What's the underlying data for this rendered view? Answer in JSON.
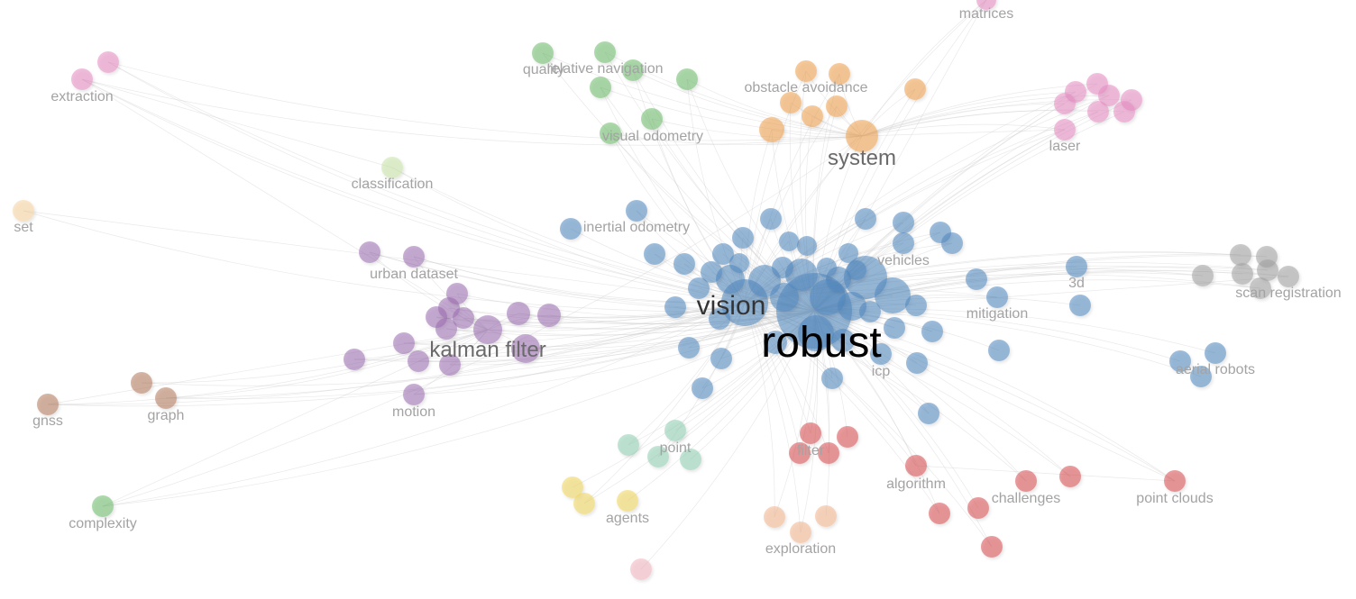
{
  "palette": {
    "blue": "#4e86bf",
    "green": "#6bbb6a",
    "orange": "#f0a04b",
    "pink": "#e78ac3",
    "purple": "#9a6bb1",
    "brown": "#b57a5c",
    "red": "#d94a4f",
    "teal": "#8fd0b2",
    "yellow": "#f1d65a",
    "peach": "#f3b48c",
    "grey": "#a0a0a0",
    "lightgreen": "#c8e6a8",
    "lightpeach": "#f7d3a1",
    "lightpink": "#f2b5c0"
  },
  "labels": {
    "robust": "robust",
    "vision": "vision",
    "system": "system",
    "kalman_filter": "kalman filter",
    "matrices": "matrices",
    "quality": "quality",
    "relative_navigation": "relative navigation",
    "obstacle_avoidance": "obstacle avoidance",
    "extraction": "extraction",
    "visual_odometry": "visual odometry",
    "laser": "laser",
    "classification": "classification",
    "set": "set",
    "inertial_odometry": "inertial odometry",
    "vehicles": "vehicles",
    "urban_dataset": "urban dataset",
    "3d": "3d",
    "scan_registration": "scan registration",
    "mitigation": "mitigation",
    "aerial_robots": "aerial robots",
    "icp": "icp",
    "gnss": "gnss",
    "graph": "graph",
    "motion": "motion",
    "point": "point",
    "filter": "filter",
    "algorithm": "algorithm",
    "challenges": "challenges",
    "point_clouds": "point clouds",
    "agents": "agents",
    "exploration": "exploration",
    "complexity": "complexity"
  }
}
